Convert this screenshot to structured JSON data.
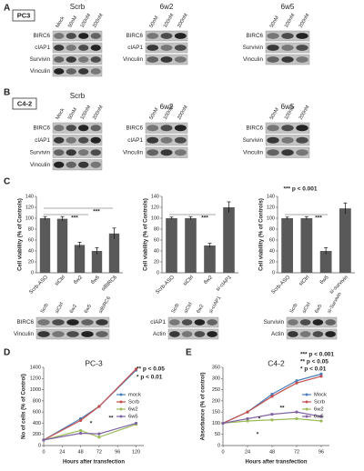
{
  "panels": {
    "A": {
      "label": "A",
      "cell_line": "PC3",
      "groups": [
        {
          "title": "Scrb",
          "lanes": [
            "Mock",
            "50nM",
            "100nM",
            "200nM"
          ],
          "rows": [
            "BIRC6",
            "cIAP1",
            "Survivin",
            "Vinculin"
          ]
        },
        {
          "title": "6w2",
          "lanes": [
            "50nM",
            "100nM",
            "200nM"
          ],
          "rows": [
            "BIRC6",
            "cIAP1",
            "Vinculin"
          ]
        },
        {
          "title": "6w5",
          "lanes": [
            "50nM",
            "100nM",
            "200nM"
          ],
          "rows": [
            "BIRC6",
            "Survivin",
            "Vinculin"
          ]
        }
      ]
    },
    "B": {
      "label": "B",
      "cell_line": "C4-2",
      "groups": [
        {
          "title": "Scrb",
          "lanes": [
            "Mock",
            "50nM",
            "100nM",
            "200nM"
          ],
          "rows": [
            "BIRC6",
            "cIAP1",
            "Survivin",
            "Vinculin"
          ]
        },
        {
          "title": "6w2",
          "lanes": [
            "50nM",
            "100nM",
            "200nM"
          ],
          "rows": [
            "BIRC6",
            "cIAP1",
            "Vinculin"
          ]
        },
        {
          "title": "6w5",
          "lanes": [
            "50nM",
            "100nM",
            "200nM"
          ],
          "rows": [
            "BIRC6",
            "Survivin",
            "Vinculin"
          ]
        }
      ]
    },
    "C": {
      "label": "C",
      "blots": [
        {
          "lanes": [
            "Scrb",
            "siCtrl",
            "6w2",
            "6w5",
            "siBIRC6"
          ],
          "rows": [
            "BIRC6",
            "Vinculin"
          ]
        },
        {
          "lanes": [
            "Scrb",
            "siCtrl",
            "6w2",
            "si-cIAP1"
          ],
          "rows": [
            "cIAP1",
            "Actin"
          ]
        },
        {
          "lanes": [
            "Scrb",
            "siCtrl",
            "6w5",
            "si-Survivin"
          ],
          "rows": [
            "Survivin",
            "Actin"
          ]
        }
      ]
    },
    "D": {
      "label": "D"
    },
    "E": {
      "label": "E"
    }
  },
  "chart_data": [
    {
      "type": "bar",
      "ylabel": "Cell viability (% of Controls)",
      "categories": [
        "Scrb-ASO",
        "siCtrl",
        "6w2",
        "6w5",
        "siBIRC6"
      ],
      "values": [
        100,
        99,
        51,
        40,
        72
      ],
      "errors": [
        3,
        4,
        5,
        6,
        10
      ],
      "color": "#595959",
      "ylim": [
        0,
        140
      ],
      "yticks": [
        0,
        20,
        40,
        60,
        80,
        100,
        120,
        140
      ],
      "annotations": [
        "***",
        "***"
      ]
    },
    {
      "type": "bar",
      "ylabel": "Cell viability (% of Controls)",
      "categories": [
        "Scrb-ASO",
        "siCtrl",
        "6w2",
        "si-cIAP1"
      ],
      "values": [
        100,
        100,
        50,
        120
      ],
      "errors": [
        2,
        3,
        4,
        10
      ],
      "color": "#595959",
      "ylim": [
        0,
        140
      ],
      "yticks": [
        0,
        20,
        40,
        60,
        80,
        100,
        120,
        140
      ],
      "annotations": [
        "***"
      ]
    },
    {
      "type": "bar",
      "ylabel": "Cell viability (% of Controls)",
      "categories": [
        "Scrb-ASO",
        "siCtrl",
        "6w5",
        "si-survivin"
      ],
      "values": [
        100,
        100,
        40,
        118
      ],
      "errors": [
        2,
        3,
        6,
        10
      ],
      "color": "#595959",
      "ylim": [
        0,
        140
      ],
      "yticks": [
        0,
        20,
        40,
        60,
        80,
        100,
        120,
        140
      ],
      "annotations": [
        "***",
        "*** p < 0.001"
      ]
    },
    {
      "type": "line",
      "title": "PC-3",
      "xlabel": "Hours after transfection",
      "ylabel": "No of cells (% of Control)",
      "x": [
        0,
        48,
        72,
        120
      ],
      "series": [
        {
          "name": "mock",
          "color": "#4a7ebb",
          "values": [
            100,
            480,
            700,
            1350
          ]
        },
        {
          "name": "Scrb",
          "color": "#c0504d",
          "values": [
            100,
            450,
            700,
            1370
          ]
        },
        {
          "name": "6w2",
          "color": "#9bbb59",
          "values": [
            100,
            270,
            150,
            380
          ]
        },
        {
          "name": "6w5",
          "color": "#8064a2",
          "values": [
            100,
            220,
            210,
            400
          ]
        }
      ],
      "xlim": [
        0,
        130
      ],
      "xticks": [
        0,
        24,
        48,
        72,
        96,
        120
      ],
      "ylim": [
        0,
        1400
      ],
      "yticks": [
        0,
        200,
        400,
        600,
        800,
        1000,
        1200,
        1400
      ],
      "legend": "right",
      "annotations": [
        "** p < 0.05",
        "* p < 0.01",
        "*",
        "**"
      ]
    },
    {
      "type": "line",
      "title": "C4-2",
      "xlabel": "Hours after transfection",
      "ylabel": "Absorbance (% of control)",
      "x": [
        0,
        24,
        48,
        72,
        96
      ],
      "series": [
        {
          "name": "Mock",
          "color": "#4a7ebb",
          "values": [
            100,
            150,
            230,
            290,
            320
          ]
        },
        {
          "name": "Scrb",
          "color": "#c0504d",
          "values": [
            100,
            150,
            220,
            280,
            310
          ]
        },
        {
          "name": "6w2",
          "color": "#9bbb59",
          "values": [
            100,
            110,
            115,
            120,
            110
          ]
        },
        {
          "name": "6w5",
          "color": "#8064a2",
          "values": [
            100,
            120,
            140,
            150,
            130
          ]
        }
      ],
      "xlim": [
        0,
        104
      ],
      "xticks": [
        0,
        24,
        48,
        72,
        96
      ],
      "ylim": [
        0,
        350
      ],
      "yticks": [
        0,
        50,
        100,
        150,
        200,
        250,
        300,
        350
      ],
      "legend": "right",
      "annotations": [
        "*** p < 0.001",
        "** p < 0.05",
        "* p < 0.01",
        "*",
        "**",
        "*"
      ]
    }
  ]
}
